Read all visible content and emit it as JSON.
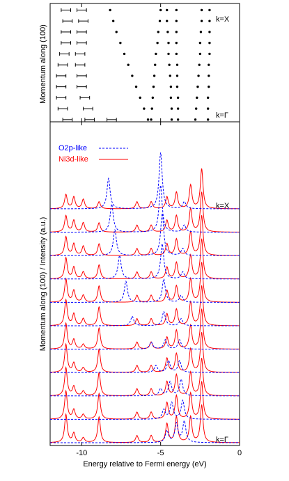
{
  "chart_data": [
    {
      "type": "scatter",
      "ylabel": "Momentum along (100)",
      "annotations": [
        "k=X",
        "k=Γ"
      ],
      "xlim": [
        -12,
        0
      ],
      "xticks": [
        -10,
        -5,
        0
      ],
      "ylim": [
        -0.02,
        1.06
      ],
      "series": [
        {
          "color": "#000000",
          "x": [
            -5.8,
            -6.05,
            -6.3,
            -6.55,
            -6.8,
            -7.05,
            -7.3,
            -7.55,
            -7.8,
            -8.0,
            -8.2
          ],
          "y": [
            0,
            0.1,
            0.2,
            0.3,
            0.4,
            0.5,
            0.6,
            0.7,
            0.8,
            0.9,
            1
          ]
        },
        {
          "color": "#000000",
          "x": [
            -5.6,
            -5.55,
            -5.5,
            -5.45,
            -5.4,
            -5.35,
            -5.3,
            -5.2,
            -5.15,
            -5.05,
            -5.0
          ],
          "y": [
            0,
            0.1,
            0.2,
            0.3,
            0.4,
            0.5,
            0.6,
            0.7,
            0.8,
            0.9,
            1
          ]
        },
        {
          "color": "#000000",
          "x": [
            -4.3,
            -4.3,
            -4.35,
            -4.35,
            -4.4,
            -4.45,
            -4.5,
            -4.5,
            -4.55,
            -4.6,
            -4.6
          ],
          "y": [
            0,
            0.1,
            0.2,
            0.3,
            0.4,
            0.5,
            0.6,
            0.7,
            0.8,
            0.9,
            1
          ]
        },
        {
          "color": "#000000",
          "x": [
            -3.9,
            -3.9,
            -3.9,
            -3.95,
            -3.95,
            -3.95,
            -4.0,
            -4.0,
            -4.0,
            -4.0,
            -4.0
          ],
          "y": [
            0,
            0.1,
            0.2,
            0.3,
            0.4,
            0.5,
            0.6,
            0.7,
            0.8,
            0.9,
            1
          ]
        },
        {
          "color": "#000000",
          "x": [
            -2.8,
            -2.75,
            -2.7,
            -2.65,
            -2.6,
            -2.55,
            -2.5,
            -2.5,
            -2.45,
            -2.4,
            -2.4
          ],
          "y": [
            0,
            0.1,
            0.2,
            0.3,
            0.4,
            0.5,
            0.6,
            0.7,
            0.8,
            0.9,
            1
          ]
        },
        {
          "color": "#000000",
          "x": [
            -2.0,
            -2.0,
            -2.0,
            -1.95,
            -1.95,
            -1.95,
            -1.9,
            -1.9,
            -1.9,
            -1.9,
            -1.9
          ],
          "y": [
            0,
            0.1,
            0.2,
            0.3,
            0.4,
            0.5,
            0.6,
            0.7,
            0.8,
            0.9,
            1
          ]
        },
        {
          "color": "#000000",
          "xerr": 0.3,
          "x": [
            -10.9,
            -11.2,
            -11.3,
            -11.3,
            -11.3,
            -11.2,
            -11.1,
            -11.0,
            -11.0,
            -10.9,
            -11.0
          ],
          "y": [
            0,
            0.1,
            0.2,
            0.3,
            0.4,
            0.5,
            0.6,
            0.7,
            0.8,
            0.9,
            1
          ]
        },
        {
          "color": "#000000",
          "xerr": 0.3,
          "x": [
            -9.5,
            -9.6,
            -9.8,
            -10.0,
            -10.0,
            -10.1,
            -10.1,
            -10.0,
            -10.0,
            -9.9,
            -10.0
          ],
          "y": [
            0,
            0.1,
            0.2,
            0.3,
            0.4,
            0.5,
            0.6,
            0.7,
            0.8,
            0.9,
            1
          ]
        },
        {
          "color": "#000000",
          "xerr": 0.3,
          "x": [
            -8.1
          ],
          "y": [
            0
          ]
        }
      ]
    },
    {
      "type": "line",
      "xlabel": "Energy relative to Fermi energy (eV)",
      "ylabel": "Momentum along (100) / Intensity (a.u.)",
      "annotations": [
        "k=X",
        "k=Γ"
      ],
      "xlim": [
        -12,
        0
      ],
      "xticks": [
        -10,
        -5,
        0
      ],
      "legend": "upper left",
      "series": [
        {
          "name": "Ni3d-like",
          "color": "#ff0000",
          "dashed": false,
          "spectra": [
            {
              "positions": [
                -11.0,
                -10.5,
                -9.9,
                -8.9,
                -6.5,
                -5.6,
                -4.6,
                -4.0,
                -3.1,
                -2.4
              ],
              "heights": [
                1.2,
                0.4,
                0.2,
                1.1,
                0.3,
                0.3,
                0.8,
                1.1,
                1.1,
                1.6
              ]
            },
            {
              "positions": [
                -11.0,
                -10.5,
                -9.9,
                -8.9,
                -6.5,
                -5.6,
                -4.6,
                -4.0,
                -3.1,
                -2.4
              ],
              "heights": [
                1.2,
                0.4,
                0.2,
                1.1,
                0.3,
                0.3,
                0.7,
                1.0,
                1.1,
                1.6
              ]
            },
            {
              "positions": [
                -11.0,
                -10.5,
                -9.9,
                -8.9,
                -6.5,
                -5.6,
                -4.6,
                -4.0,
                -3.1,
                -2.4
              ],
              "heights": [
                1.2,
                0.4,
                0.2,
                1.0,
                0.3,
                0.3,
                0.6,
                0.9,
                1.0,
                1.6
              ]
            },
            {
              "positions": [
                -11.0,
                -10.5,
                -9.9,
                -8.9,
                -6.5,
                -5.6,
                -4.6,
                -4.0,
                -3.1,
                -2.4
              ],
              "heights": [
                1.2,
                0.4,
                0.2,
                1.0,
                0.3,
                0.3,
                0.6,
                0.8,
                1.0,
                1.7
              ]
            },
            {
              "positions": [
                -11.0,
                -10.5,
                -9.9,
                -8.9,
                -6.5,
                -5.6,
                -4.6,
                -4.0,
                -3.1,
                -2.4
              ],
              "heights": [
                1.1,
                0.4,
                0.2,
                0.9,
                0.3,
                0.3,
                0.5,
                0.8,
                1.0,
                1.7
              ]
            },
            {
              "positions": [
                -11.0,
                -10.5,
                -9.9,
                -8.9,
                -6.5,
                -5.6,
                -4.6,
                -4.0,
                -3.1,
                -2.4
              ],
              "heights": [
                1.1,
                0.5,
                0.3,
                0.8,
                0.3,
                0.3,
                0.5,
                0.7,
                1.0,
                1.7
              ]
            },
            {
              "positions": [
                -11.0,
                -10.5,
                -9.9,
                -8.9,
                -6.5,
                -5.6,
                -4.6,
                -4.0,
                -3.1,
                -2.4
              ],
              "heights": [
                1.0,
                0.5,
                0.3,
                0.7,
                0.3,
                0.3,
                0.5,
                0.7,
                1.0,
                1.7
              ]
            },
            {
              "positions": [
                -11.0,
                -10.5,
                -9.9,
                -8.9,
                -6.5,
                -5.6,
                -4.6,
                -4.0,
                -3.1,
                -2.4
              ],
              "heights": [
                0.9,
                0.5,
                0.3,
                0.6,
                0.3,
                0.3,
                0.5,
                0.7,
                1.0,
                1.7
              ]
            },
            {
              "positions": [
                -11.0,
                -10.5,
                -9.9,
                -8.9,
                -6.5,
                -5.6,
                -4.6,
                -4.0,
                -3.1,
                -2.4
              ],
              "heights": [
                0.8,
                0.5,
                0.4,
                0.5,
                0.3,
                0.3,
                0.5,
                0.7,
                1.0,
                1.7
              ]
            },
            {
              "positions": [
                -11.0,
                -10.5,
                -9.9,
                -8.9,
                -6.5,
                -5.6,
                -4.6,
                -4.0,
                -3.1,
                -2.4
              ],
              "heights": [
                0.7,
                0.5,
                0.4,
                0.4,
                0.3,
                0.3,
                0.5,
                0.7,
                1.0,
                1.7
              ]
            },
            {
              "positions": [
                -11.0,
                -10.5,
                -9.9,
                -8.9,
                -6.5,
                -5.6,
                -4.6,
                -4.0,
                -3.1,
                -2.4
              ],
              "heights": [
                0.6,
                0.5,
                0.4,
                0.3,
                0.3,
                0.3,
                0.5,
                0.7,
                1.0,
                1.7
              ]
            }
          ]
        },
        {
          "name": "O2p-like",
          "color": "#0000ff",
          "dashed": true,
          "spectra": [
            {
              "positions": [
                -4.6,
                -4.0,
                -3.5
              ],
              "heights": [
                0.5,
                0.8,
                0.9
              ]
            },
            {
              "positions": [
                -4.8,
                -4.3,
                -3.6
              ],
              "heights": [
                0.4,
                0.7,
                0.8
              ]
            },
            {
              "positions": [
                -5.0,
                -4.4,
                -3.7
              ],
              "heights": [
                0.3,
                0.6,
                0.7
              ]
            },
            {
              "positions": [
                -5.3,
                -4.5,
                -3.8
              ],
              "heights": [
                0.3,
                0.5,
                0.5
              ]
            },
            {
              "positions": [
                -5.6,
                -4.7,
                -3.8
              ],
              "heights": [
                0.3,
                0.4,
                0.4
              ]
            },
            {
              "positions": [
                -6.8,
                -4.8,
                -3.7
              ],
              "heights": [
                0.4,
                0.6,
                0.3
              ]
            },
            {
              "positions": [
                -7.2,
                -4.8,
                -3.7
              ],
              "heights": [
                0.9,
                1.0,
                0.3
              ]
            },
            {
              "positions": [
                -7.6,
                -4.9,
                -3.6
              ],
              "heights": [
                1.0,
                1.5,
                0.3
              ]
            },
            {
              "positions": [
                -7.9,
                -4.9,
                -3.6
              ],
              "heights": [
                1.1,
                1.8,
                0.3
              ]
            },
            {
              "positions": [
                -8.1,
                -5.0,
                -3.5
              ],
              "heights": [
                1.2,
                2.0,
                0.3
              ]
            },
            {
              "positions": [
                -8.3,
                -5.0,
                -3.5
              ],
              "heights": [
                1.3,
                2.4,
                0.3
              ]
            }
          ]
        }
      ]
    }
  ]
}
